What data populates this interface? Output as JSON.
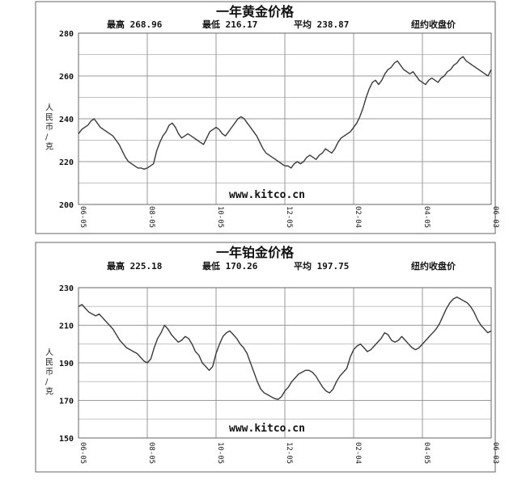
{
  "chart_data": [
    {
      "type": "line",
      "title": "一年黄金价格",
      "stats": {
        "high_label": "最高",
        "high_value": "268.96",
        "low_label": "最低",
        "low_value": "216.17",
        "avg_label": "平均",
        "avg_value": "238.87",
        "source_label": "纽约收盘价"
      },
      "ylabel": "人民币/克",
      "watermark": "www.kitco.cn",
      "ylim": [
        200,
        280
      ],
      "yticks": [
        "200",
        "220",
        "240",
        "260",
        "280"
      ],
      "xticks": [
        "06-05",
        "08-05",
        "10-05",
        "12-05",
        "02-04",
        "04-05",
        "06-03"
      ],
      "series": [
        {
          "values": [
            233,
            235,
            236,
            237,
            239,
            240,
            238,
            236,
            235,
            234,
            233,
            232,
            230,
            228,
            225,
            222,
            220,
            219,
            218,
            217,
            217,
            216.5,
            217,
            218,
            219,
            225,
            229,
            232,
            234,
            237,
            238,
            236,
            233,
            231,
            232,
            233,
            232,
            231,
            230,
            229,
            228,
            231,
            234,
            235,
            236,
            235,
            233,
            232,
            234,
            236,
            238,
            240,
            241,
            240,
            238,
            236,
            234,
            232,
            229,
            226,
            224,
            223,
            222,
            221,
            220,
            219,
            218,
            218,
            217,
            219,
            220,
            219,
            220,
            222,
            223,
            222,
            221,
            223,
            224,
            226,
            225,
            224,
            226,
            229,
            231,
            232,
            233,
            234,
            236,
            238,
            241,
            245,
            250,
            254,
            257,
            258,
            256,
            258,
            261,
            263,
            264,
            266,
            267,
            265,
            263,
            262,
            261,
            262,
            260,
            258,
            257,
            256,
            258,
            259,
            258,
            257,
            259,
            260,
            262,
            263,
            265,
            266,
            268,
            269,
            267,
            266,
            265,
            264,
            263,
            262,
            261,
            260,
            263
          ]
        }
      ]
    },
    {
      "type": "line",
      "title": "一年铂金价格",
      "stats": {
        "high_label": "最高",
        "high_value": "225.18",
        "low_label": "最低",
        "low_value": "170.26",
        "avg_label": "平均",
        "avg_value": "197.75",
        "source_label": "纽约收盘价"
      },
      "ylabel": "人民币/克",
      "watermark": "www.kitco.cn",
      "ylim": [
        150,
        230
      ],
      "yticks": [
        "150",
        "170",
        "190",
        "210",
        "230"
      ],
      "xticks": [
        "06-05",
        "08-05",
        "10-05",
        "12-05",
        "02-04",
        "04-05",
        "06-03"
      ],
      "series": [
        {
          "values": [
            220,
            221,
            219,
            217,
            216,
            215,
            216,
            214,
            212,
            210,
            208,
            205,
            202,
            200,
            198,
            197,
            196,
            195,
            193,
            191,
            190,
            192,
            198,
            203,
            206,
            210,
            208,
            205,
            203,
            201,
            202,
            204,
            203,
            200,
            196,
            194,
            190,
            188,
            186,
            188,
            195,
            200,
            204,
            206,
            207,
            205,
            203,
            200,
            198,
            195,
            190,
            185,
            180,
            176,
            174,
            173,
            172,
            171,
            170.5,
            172,
            175,
            177,
            180,
            182,
            184,
            185,
            186,
            186,
            185,
            183,
            180,
            177,
            175,
            174,
            176,
            180,
            183,
            185,
            187,
            193,
            197,
            199,
            200,
            198,
            196,
            197,
            199,
            201,
            203,
            206,
            205,
            202,
            201,
            202,
            204,
            202,
            200,
            198,
            197,
            198,
            200,
            202,
            204,
            206,
            208,
            211,
            215,
            219,
            222,
            224,
            225,
            224,
            223,
            222,
            220,
            217,
            213,
            210,
            208,
            206,
            207
          ]
        }
      ]
    }
  ]
}
